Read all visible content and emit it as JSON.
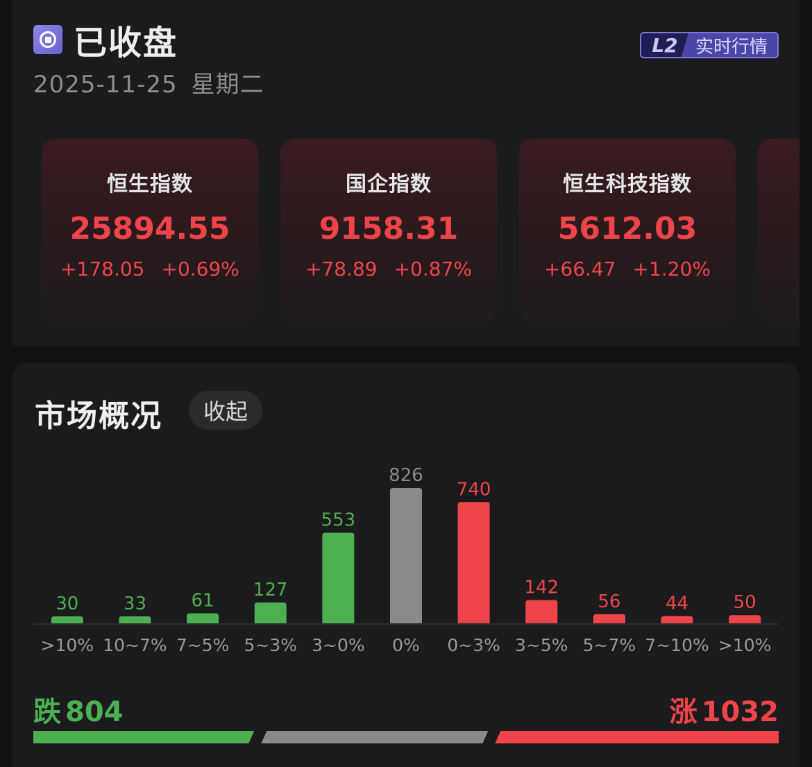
{
  "status": {
    "title": "已收盘",
    "date": "2025-11-25",
    "weekday": "星期二",
    "icon": "stop-circle-icon"
  },
  "badge": {
    "tag": "L2",
    "label": "实时行情",
    "color": "#4a47a8"
  },
  "indices": [
    {
      "name": "恒生指数",
      "value": "25894.55",
      "change": "+178.05",
      "percent": "+0.69%"
    },
    {
      "name": "国企指数",
      "value": "9158.31",
      "change": "+78.89",
      "percent": "+0.87%"
    },
    {
      "name": "恒生科技指数",
      "value": "5612.03",
      "change": "+66.47",
      "percent": "+1.20%"
    }
  ],
  "overview": {
    "title": "市场概况",
    "collapse_label": "收起"
  },
  "chart_data": {
    "type": "bar",
    "categories": [
      ">10%",
      "10~7%",
      "7~5%",
      "5~3%",
      "3~0%",
      "0%",
      "0~3%",
      "3~5%",
      "5~7%",
      "7~10%",
      ">10%"
    ],
    "values": [
      30,
      33,
      61,
      127,
      553,
      826,
      740,
      142,
      56,
      44,
      50
    ],
    "colors": [
      "#4caf50",
      "#4caf50",
      "#4caf50",
      "#4caf50",
      "#4caf50",
      "#8a8a8a",
      "#f0444b",
      "#f0444b",
      "#f0444b",
      "#f0444b",
      "#f0444b"
    ],
    "title": "",
    "xlabel": "",
    "ylabel": "",
    "ylim": [
      0,
      826
    ]
  },
  "summary": {
    "fall_label": "跌",
    "fall_count": "804",
    "rise_label": "涨",
    "rise_count": "1032",
    "fall_color": "#4caf50",
    "flat_color": "#8a8a8a",
    "rise_color": "#f0444b"
  }
}
